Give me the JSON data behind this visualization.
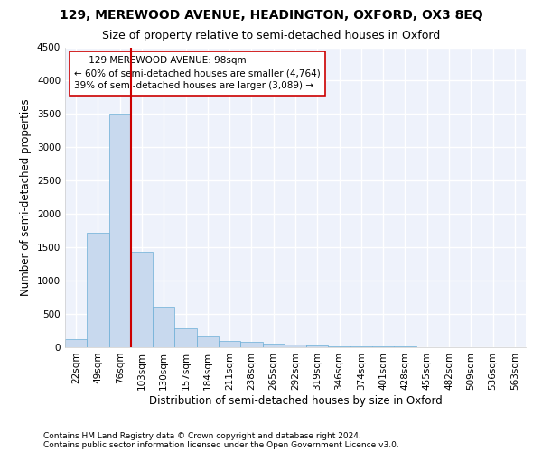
{
  "title": "129, MEREWOOD AVENUE, HEADINGTON, OXFORD, OX3 8EQ",
  "subtitle": "Size of property relative to semi-detached houses in Oxford",
  "xlabel": "Distribution of semi-detached houses by size in Oxford",
  "ylabel": "Number of semi-detached properties",
  "footnote1": "Contains HM Land Registry data © Crown copyright and database right 2024.",
  "footnote2": "Contains public sector information licensed under the Open Government Licence v3.0.",
  "bin_labels": [
    "22sqm",
    "49sqm",
    "76sqm",
    "103sqm",
    "130sqm",
    "157sqm",
    "184sqm",
    "211sqm",
    "238sqm",
    "265sqm",
    "292sqm",
    "319sqm",
    "346sqm",
    "374sqm",
    "401sqm",
    "428sqm",
    "455sqm",
    "482sqm",
    "509sqm",
    "536sqm",
    "563sqm"
  ],
  "bar_values": [
    120,
    1720,
    3500,
    1430,
    610,
    290,
    160,
    100,
    80,
    60,
    40,
    30,
    20,
    15,
    10,
    8,
    5,
    4,
    3,
    2,
    1
  ],
  "bar_color": "#c8d9ee",
  "bar_edge_color": "#6aaed6",
  "ylim": [
    0,
    4500
  ],
  "yticks": [
    0,
    500,
    1000,
    1500,
    2000,
    2500,
    3000,
    3500,
    4000,
    4500
  ],
  "property_line_bin": 2,
  "property_line_color": "#cc0000",
  "annotation_line1": "     129 MEREWOOD AVENUE: 98sqm",
  "annotation_line2": "← 60% of semi-detached houses are smaller (4,764)",
  "annotation_line3": "39% of semi-detached houses are larger (3,089) →",
  "annotation_box_color": "#ffffff",
  "annotation_box_edge": "#cc0000",
  "background_color": "#eef2fb",
  "grid_color": "#ffffff",
  "title_fontsize": 10,
  "subtitle_fontsize": 9,
  "axis_label_fontsize": 8.5,
  "tick_fontsize": 7.5,
  "annotation_fontsize": 7.5,
  "footnote_fontsize": 6.5
}
